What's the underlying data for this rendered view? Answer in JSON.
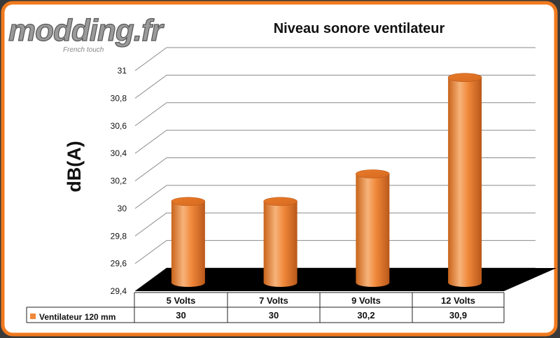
{
  "logo": {
    "text": "modding.fr",
    "tagline": "French touch"
  },
  "colors": {
    "frame_border": "#f07a1e",
    "background": "#ffffff",
    "bar_fill": "#f0883a",
    "bar_dark": "#c9631a",
    "bar_light": "#f7b37a",
    "floor": "#000000",
    "grid": "#8a8a8a"
  },
  "chart_data": {
    "type": "bar",
    "title": "Niveau sonore ventilateur",
    "xlabel": "",
    "ylabel": "dB(A)",
    "ylim": [
      29.4,
      31
    ],
    "yticks": [
      "29,4",
      "29,6",
      "29,8",
      "30",
      "30,2",
      "30,4",
      "30,6",
      "30,8",
      "31"
    ],
    "categories": [
      "5 Volts",
      "7 Volts",
      "9 Volts",
      "12 Volts"
    ],
    "series": [
      {
        "name": "Ventilateur 120 mm",
        "values": [
          30,
          30,
          30.2,
          30.9
        ],
        "labels": [
          "30",
          "30",
          "30,2",
          "30,9"
        ]
      }
    ],
    "style": "3d-cylinder",
    "grid": true,
    "legend": "data-table"
  }
}
